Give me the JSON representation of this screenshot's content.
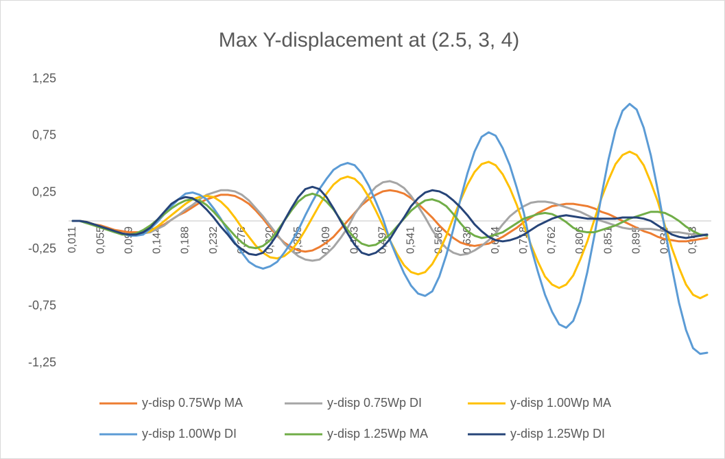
{
  "chart_data": {
    "type": "line",
    "title": "Max Y-displacement at (2.5, 3, 4)",
    "categories": [
      "0,011",
      null,
      null,
      null,
      "0,055",
      null,
      null,
      null,
      "0,099",
      null,
      null,
      null,
      "0,144",
      null,
      null,
      null,
      "0,188",
      null,
      null,
      null,
      "0,232",
      null,
      null,
      null,
      "0,276",
      null,
      null,
      null,
      "0,320",
      null,
      null,
      null,
      "0,365",
      null,
      null,
      null,
      "0,409",
      null,
      null,
      null,
      "0,453",
      null,
      null,
      null,
      "0,497",
      null,
      null,
      null,
      "0,541",
      null,
      null,
      null,
      "0,586",
      null,
      null,
      null,
      "0,630",
      null,
      null,
      null,
      "0,674",
      null,
      null,
      null,
      "0,718",
      null,
      null,
      null,
      "0,762",
      null,
      null,
      null,
      "0,806",
      null,
      null,
      null,
      "0,851",
      null,
      null,
      null,
      "0,895",
      null,
      null,
      null,
      "0,939",
      null,
      null,
      null,
      "0,983",
      null,
      null
    ],
    "ylim": [
      -1.25,
      1.25
    ],
    "yticks": [
      {
        "value": -1.25,
        "label": "-1,25"
      },
      {
        "value": -0.75,
        "label": "-0,75"
      },
      {
        "value": -0.25,
        "label": "-0,25"
      },
      {
        "value": 0.25,
        "label": "0,25"
      },
      {
        "value": 0.75,
        "label": "0,75"
      },
      {
        "value": 1.25,
        "label": "1,25"
      }
    ],
    "grid": false,
    "legend": "bottom",
    "series": [
      {
        "name": "y-disp 0.75Wp MA",
        "color": "#ED7D31",
        "values": [
          0,
          0,
          -0.01,
          -0.03,
          -0.04,
          -0.06,
          -0.08,
          -0.09,
          -0.1,
          -0.1,
          -0.1,
          -0.08,
          -0.06,
          -0.03,
          0.01,
          0.05,
          0.08,
          0.12,
          0.16,
          0.19,
          0.21,
          0.23,
          0.23,
          0.22,
          0.19,
          0.15,
          0.09,
          0.02,
          -0.06,
          -0.13,
          -0.19,
          -0.23,
          -0.26,
          -0.27,
          -0.26,
          -0.23,
          -0.19,
          -0.14,
          -0.07,
          0,
          0.07,
          0.14,
          0.19,
          0.23,
          0.26,
          0.27,
          0.26,
          0.24,
          0.2,
          0.15,
          0.09,
          0.03,
          -0.04,
          -0.1,
          -0.15,
          -0.19,
          -0.21,
          -0.22,
          -0.21,
          -0.2,
          -0.17,
          -0.14,
          -0.1,
          -0.06,
          -0.01,
          0.03,
          0.07,
          0.1,
          0.13,
          0.14,
          0.15,
          0.15,
          0.14,
          0.13,
          0.11,
          0.08,
          0.06,
          0.03,
          0,
          -0.03,
          -0.06,
          -0.09,
          -0.11,
          -0.14,
          -0.16,
          -0.17,
          -0.18,
          -0.18,
          -0.17,
          -0.16,
          -0.15
        ]
      },
      {
        "name": "y-disp 0.75Wp DI",
        "color": "#A5A5A5",
        "values": [
          0,
          0,
          -0.01,
          -0.03,
          -0.05,
          -0.07,
          -0.09,
          -0.11,
          -0.12,
          -0.12,
          -0.11,
          -0.1,
          -0.07,
          -0.04,
          0.01,
          0.05,
          0.1,
          0.14,
          0.19,
          0.23,
          0.25,
          0.27,
          0.27,
          0.26,
          0.23,
          0.18,
          0.11,
          0.04,
          -0.04,
          -0.12,
          -0.2,
          -0.26,
          -0.31,
          -0.34,
          -0.35,
          -0.34,
          -0.29,
          -0.23,
          -0.15,
          -0.06,
          0.06,
          0.15,
          0.23,
          0.3,
          0.34,
          0.35,
          0.33,
          0.29,
          0.22,
          0.13,
          0.03,
          -0.08,
          -0.17,
          -0.24,
          -0.28,
          -0.3,
          -0.29,
          -0.26,
          -0.22,
          -0.17,
          -0.11,
          -0.03,
          0.04,
          0.09,
          0.13,
          0.16,
          0.17,
          0.17,
          0.16,
          0.14,
          0.12,
          0.1,
          0.08,
          0.05,
          0.02,
          0,
          -0.02,
          -0.04,
          -0.06,
          -0.07,
          -0.07,
          -0.07,
          -0.07,
          -0.08,
          -0.09,
          -0.1,
          -0.1,
          -0.11,
          -0.12,
          -0.12,
          -0.12
        ]
      },
      {
        "name": "y-disp 1.00Wp MA",
        "color": "#FFC000",
        "values": [
          0,
          0,
          -0.01,
          -0.03,
          -0.05,
          -0.07,
          -0.09,
          -0.11,
          -0.12,
          -0.12,
          -0.11,
          -0.09,
          -0.05,
          0,
          0.05,
          0.1,
          0.15,
          0.19,
          0.21,
          0.22,
          0.21,
          0.17,
          0.11,
          0.03,
          -0.06,
          -0.14,
          -0.22,
          -0.28,
          -0.32,
          -0.33,
          -0.31,
          -0.26,
          -0.18,
          -0.08,
          0.03,
          0.14,
          0.24,
          0.32,
          0.37,
          0.39,
          0.37,
          0.31,
          0.21,
          0.09,
          -0.04,
          -0.17,
          -0.29,
          -0.39,
          -0.45,
          -0.47,
          -0.45,
          -0.38,
          -0.27,
          -0.13,
          0.03,
          0.18,
          0.32,
          0.43,
          0.5,
          0.52,
          0.49,
          0.41,
          0.29,
          0.14,
          -0.04,
          -0.21,
          -0.36,
          -0.49,
          -0.56,
          -0.59,
          -0.56,
          -0.48,
          -0.34,
          -0.18,
          0.01,
          0.2,
          0.36,
          0.5,
          0.58,
          0.61,
          0.58,
          0.49,
          0.34,
          0.17,
          -0.04,
          -0.24,
          -0.41,
          -0.56,
          -0.65,
          -0.68,
          -0.65
        ]
      },
      {
        "name": "y-disp 1.00Wp DI",
        "color": "#5B9BD5",
        "values": [
          0,
          0,
          -0.02,
          -0.03,
          -0.05,
          -0.08,
          -0.1,
          -0.11,
          -0.13,
          -0.13,
          -0.12,
          -0.07,
          -0.01,
          0.06,
          0.13,
          0.19,
          0.24,
          0.25,
          0.23,
          0.19,
          0.11,
          0.02,
          -0.09,
          -0.19,
          -0.28,
          -0.36,
          -0.4,
          -0.42,
          -0.4,
          -0.36,
          -0.28,
          -0.19,
          -0.08,
          0.05,
          0.17,
          0.28,
          0.37,
          0.45,
          0.49,
          0.51,
          0.49,
          0.42,
          0.31,
          0.17,
          0.02,
          -0.17,
          -0.32,
          -0.46,
          -0.57,
          -0.64,
          -0.66,
          -0.62,
          -0.49,
          -0.3,
          -0.07,
          0.19,
          0.42,
          0.61,
          0.74,
          0.78,
          0.75,
          0.64,
          0.49,
          0.29,
          0.07,
          -0.23,
          -0.45,
          -0.65,
          -0.8,
          -0.91,
          -0.94,
          -0.88,
          -0.71,
          -0.45,
          -0.13,
          0.22,
          0.54,
          0.8,
          0.97,
          1.03,
          0.98,
          0.82,
          0.58,
          0.27,
          -0.07,
          -0.41,
          -0.72,
          -0.96,
          -1.12,
          -1.17,
          -1.16
        ]
      },
      {
        "name": "y-disp 1.25Wp MA",
        "color": "#70AD47",
        "values": [
          0,
          0,
          -0.02,
          -0.04,
          -0.06,
          -0.08,
          -0.1,
          -0.12,
          -0.12,
          -0.11,
          -0.08,
          -0.04,
          0.01,
          0.06,
          0.11,
          0.15,
          0.18,
          0.19,
          0.18,
          0.14,
          0.08,
          0.01,
          -0.06,
          -0.13,
          -0.19,
          -0.23,
          -0.24,
          -0.22,
          -0.17,
          -0.09,
          0,
          0.09,
          0.17,
          0.22,
          0.24,
          0.22,
          0.17,
          0.1,
          0.01,
          -0.08,
          -0.15,
          -0.2,
          -0.22,
          -0.21,
          -0.17,
          -0.12,
          -0.05,
          0.02,
          0.09,
          0.14,
          0.18,
          0.19,
          0.17,
          0.13,
          0.06,
          -0.02,
          -0.09,
          -0.13,
          -0.15,
          -0.14,
          -0.12,
          -0.1,
          -0.06,
          -0.02,
          0.02,
          0.04,
          0.06,
          0.07,
          0.06,
          0.03,
          -0.01,
          -0.06,
          -0.09,
          -0.1,
          -0.1,
          -0.08,
          -0.06,
          -0.04,
          -0.01,
          0.02,
          0.04,
          0.06,
          0.08,
          0.08,
          0.07,
          0.04,
          0,
          -0.05,
          -0.09,
          -0.12,
          -0.13
        ]
      },
      {
        "name": "y-disp 1.25Wp DI",
        "color": "#264478",
        "values": [
          0,
          0,
          -0.01,
          -0.03,
          -0.05,
          -0.07,
          -0.09,
          -0.11,
          -0.12,
          -0.12,
          -0.1,
          -0.06,
          0.01,
          0.08,
          0.15,
          0.19,
          0.21,
          0.2,
          0.16,
          0.1,
          0.03,
          -0.05,
          -0.12,
          -0.2,
          -0.25,
          -0.29,
          -0.3,
          -0.28,
          -0.21,
          -0.12,
          0,
          0.11,
          0.21,
          0.28,
          0.3,
          0.28,
          0.21,
          0.11,
          0,
          -0.11,
          -0.21,
          -0.28,
          -0.3,
          -0.28,
          -0.23,
          -0.16,
          -0.06,
          0.03,
          0.13,
          0.2,
          0.25,
          0.27,
          0.26,
          0.23,
          0.18,
          0.12,
          0.05,
          -0.03,
          -0.09,
          -0.14,
          -0.17,
          -0.18,
          -0.17,
          -0.15,
          -0.12,
          -0.08,
          -0.04,
          -0.01,
          0.02,
          0.04,
          0.05,
          0.04,
          0.03,
          0.02,
          0.02,
          0.02,
          0.02,
          0.02,
          0.03,
          0.03,
          0.03,
          0.02,
          0,
          -0.04,
          -0.08,
          -0.12,
          -0.14,
          -0.15,
          -0.14,
          -0.13,
          -0.12
        ]
      }
    ]
  }
}
